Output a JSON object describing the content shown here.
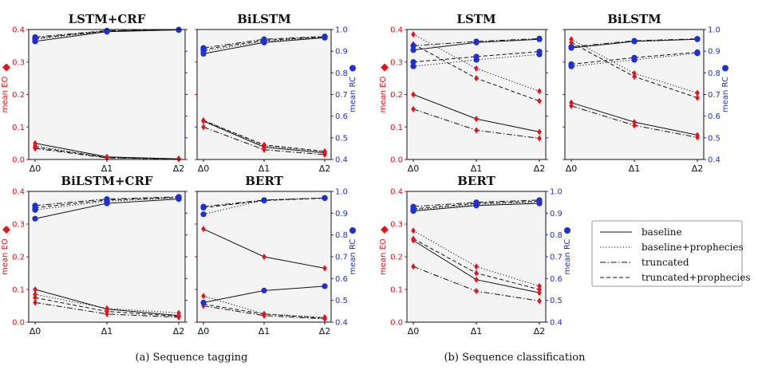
{
  "colors": {
    "eo": "#e8101a",
    "rc": "#1f2fd6",
    "plot_bg": "#f4f4f4",
    "axis": "#111111"
  },
  "captions": {
    "a": "(a) Sequence tagging",
    "b": "(b) Sequence classification"
  },
  "chart_data": [
    {
      "type": "line",
      "group": "Sequence tagging",
      "title": "LSTM+CRF",
      "x": [
        "Δ0",
        "Δ1",
        "Δ2"
      ],
      "ylabel_left": "mean EO",
      "ylabel_right": "mean RC",
      "ylim_left": [
        0,
        0.4
      ],
      "ylim_right": [
        0.4,
        1.0
      ],
      "yticks_left": [
        "0.0",
        "0.1",
        "0.2",
        "0.3",
        "0.4"
      ],
      "yticks_right": [
        "0.4",
        "0.5",
        "0.6",
        "0.7",
        "0.8",
        "0.9",
        "1.0"
      ],
      "show_left_ticks": true,
      "show_right_ticks": false,
      "series": [
        {
          "name": "baseline",
          "metric": "EO",
          "values": [
            0.05,
            0.008,
            0.002
          ]
        },
        {
          "name": "baseline+prophecies",
          "metric": "EO",
          "values": [
            0.042,
            0.006,
            0.002
          ]
        },
        {
          "name": "truncated",
          "metric": "EO",
          "values": [
            0.034,
            0.005,
            0.001
          ]
        },
        {
          "name": "truncated+prophecies",
          "metric": "EO",
          "values": [
            0.038,
            0.006,
            0.002
          ]
        },
        {
          "name": "baseline",
          "metric": "RC",
          "values": [
            0.945,
            0.99,
            0.998
          ]
        },
        {
          "name": "baseline+prophecies",
          "metric": "RC",
          "values": [
            0.955,
            0.992,
            0.998
          ]
        },
        {
          "name": "truncated",
          "metric": "RC",
          "values": [
            0.965,
            0.995,
            0.999
          ]
        },
        {
          "name": "truncated+prophecies",
          "metric": "RC",
          "values": [
            0.96,
            0.993,
            0.999
          ]
        }
      ]
    },
    {
      "type": "line",
      "group": "Sequence tagging",
      "title": "BiLSTM",
      "x": [
        "Δ0",
        "Δ1",
        "Δ2"
      ],
      "ylabel_left": "mean EO",
      "ylabel_right": "mean RC",
      "ylim_left": [
        0,
        0.4
      ],
      "ylim_right": [
        0.4,
        1.0
      ],
      "yticks_left": [
        "0.0",
        "0.1",
        "0.2",
        "0.3",
        "0.4"
      ],
      "yticks_right": [
        "0.4",
        "0.5",
        "0.6",
        "0.7",
        "0.8",
        "0.9",
        "1.0"
      ],
      "show_left_ticks": false,
      "show_right_ticks": true,
      "series": [
        {
          "name": "baseline",
          "metric": "EO",
          "values": [
            0.118,
            0.038,
            0.02
          ]
        },
        {
          "name": "baseline+prophecies",
          "metric": "EO",
          "values": [
            0.12,
            0.042,
            0.024
          ]
        },
        {
          "name": "truncated",
          "metric": "EO",
          "values": [
            0.1,
            0.03,
            0.015
          ]
        },
        {
          "name": "truncated+prophecies",
          "metric": "EO",
          "values": [
            0.12,
            0.045,
            0.025
          ]
        },
        {
          "name": "baseline",
          "metric": "RC",
          "values": [
            0.888,
            0.94,
            0.962
          ]
        },
        {
          "name": "baseline+prophecies",
          "metric": "RC",
          "values": [
            0.9,
            0.945,
            0.965
          ]
        },
        {
          "name": "truncated",
          "metric": "RC",
          "values": [
            0.915,
            0.955,
            0.968
          ]
        },
        {
          "name": "truncated+prophecies",
          "metric": "RC",
          "values": [
            0.908,
            0.95,
            0.966
          ]
        }
      ]
    },
    {
      "type": "line",
      "group": "Sequence tagging",
      "title": "BiLSTM+CRF",
      "x": [
        "Δ0",
        "Δ1",
        "Δ2"
      ],
      "ylabel_left": "mean EO",
      "ylabel_right": "mean RC",
      "ylim_left": [
        0,
        0.4
      ],
      "ylim_right": [
        0.4,
        1.0
      ],
      "yticks_left": [
        "0.0",
        "0.1",
        "0.2",
        "0.3",
        "0.4"
      ],
      "yticks_right": [
        "0.4",
        "0.5",
        "0.6",
        "0.7",
        "0.8",
        "0.9",
        "1.0"
      ],
      "show_left_ticks": true,
      "show_right_ticks": false,
      "series": [
        {
          "name": "baseline",
          "metric": "EO",
          "values": [
            0.1,
            0.04,
            0.02
          ]
        },
        {
          "name": "baseline+prophecies",
          "metric": "EO",
          "values": [
            0.085,
            0.042,
            0.028
          ]
        },
        {
          "name": "truncated",
          "metric": "EO",
          "values": [
            0.06,
            0.025,
            0.015
          ]
        },
        {
          "name": "truncated+prophecies",
          "metric": "EO",
          "values": [
            0.075,
            0.033,
            0.018
          ]
        },
        {
          "name": "baseline",
          "metric": "RC",
          "values": [
            0.875,
            0.945,
            0.965
          ]
        },
        {
          "name": "baseline+prophecies",
          "metric": "RC",
          "values": [
            0.915,
            0.955,
            0.97
          ]
        },
        {
          "name": "truncated",
          "metric": "RC",
          "values": [
            0.935,
            0.965,
            0.975
          ]
        },
        {
          "name": "truncated+prophecies",
          "metric": "RC",
          "values": [
            0.925,
            0.96,
            0.972
          ]
        }
      ]
    },
    {
      "type": "line",
      "group": "Sequence tagging",
      "title": "BERT",
      "x": [
        "Δ0",
        "Δ1",
        "Δ2"
      ],
      "ylabel_left": "mean EO",
      "ylabel_right": "mean RC",
      "ylim_left": [
        0,
        0.4
      ],
      "ylim_right": [
        0.4,
        1.0
      ],
      "yticks_left": [
        "0.0",
        "0.1",
        "0.2",
        "0.3",
        "0.4"
      ],
      "yticks_right": [
        "0.4",
        "0.5",
        "0.6",
        "0.7",
        "0.8",
        "0.9",
        "1.0"
      ],
      "show_left_ticks": false,
      "show_right_ticks": true,
      "series": [
        {
          "name": "baseline",
          "metric": "EO",
          "values": [
            0.285,
            0.2,
            0.165
          ]
        },
        {
          "name": "baseline+prophecies",
          "metric": "EO",
          "values": [
            0.08,
            0.025,
            0.015
          ]
        },
        {
          "name": "truncated",
          "metric": "EO",
          "values": [
            0.05,
            0.02,
            0.01
          ]
        },
        {
          "name": "truncated+prophecies",
          "metric": "EO",
          "values": [
            0.055,
            0.025,
            0.012
          ]
        },
        {
          "name": "baseline",
          "metric": "RC",
          "values": [
            0.49,
            0.545,
            0.565
          ]
        },
        {
          "name": "baseline+prophecies",
          "metric": "RC",
          "values": [
            0.895,
            0.96,
            0.97
          ]
        },
        {
          "name": "truncated",
          "metric": "RC",
          "values": [
            0.93,
            0.96,
            0.97
          ]
        },
        {
          "name": "truncated+prophecies",
          "metric": "RC",
          "values": [
            0.925,
            0.958,
            0.969
          ]
        }
      ]
    },
    {
      "type": "line",
      "group": "Sequence classification",
      "title": "LSTM",
      "x": [
        "Δ0",
        "Δ1",
        "Δ2"
      ],
      "ylabel_left": "mean EO",
      "ylabel_right": "mean RC",
      "ylim_left": [
        0,
        0.4
      ],
      "ylim_right": [
        0.4,
        1.0
      ],
      "yticks_left": [
        "0.0",
        "0.1",
        "0.2",
        "0.3",
        "0.4"
      ],
      "yticks_right": [
        "0.4",
        "0.5",
        "0.6",
        "0.7",
        "0.8",
        "0.9",
        "1.0"
      ],
      "show_left_ticks": true,
      "show_right_ticks": false,
      "series": [
        {
          "name": "baseline",
          "metric": "EO",
          "values": [
            0.2,
            0.125,
            0.085
          ]
        },
        {
          "name": "baseline+prophecies",
          "metric": "EO",
          "values": [
            0.385,
            0.28,
            0.21
          ]
        },
        {
          "name": "truncated",
          "metric": "EO",
          "values": [
            0.155,
            0.09,
            0.065
          ]
        },
        {
          "name": "truncated+prophecies",
          "metric": "EO",
          "values": [
            0.355,
            0.25,
            0.18
          ]
        },
        {
          "name": "baseline",
          "metric": "RC",
          "values": [
            0.905,
            0.94,
            0.955
          ]
        },
        {
          "name": "baseline+prophecies",
          "metric": "RC",
          "values": [
            0.83,
            0.86,
            0.885
          ]
        },
        {
          "name": "truncated",
          "metric": "RC",
          "values": [
            0.925,
            0.945,
            0.958
          ]
        },
        {
          "name": "truncated+prophecies",
          "metric": "RC",
          "values": [
            0.85,
            0.875,
            0.898
          ]
        }
      ]
    },
    {
      "type": "line",
      "group": "Sequence classification",
      "title": "BiLSTM",
      "x": [
        "Δ0",
        "Δ1",
        "Δ2"
      ],
      "ylabel_left": "mean EO",
      "ylabel_right": "mean RC",
      "ylim_left": [
        0,
        0.4
      ],
      "ylim_right": [
        0.4,
        1.0
      ],
      "yticks_left": [
        "0.0",
        "0.1",
        "0.2",
        "0.3",
        "0.4"
      ],
      "yticks_right": [
        "0.4",
        "0.5",
        "0.6",
        "0.7",
        "0.8",
        "0.9",
        "1.0"
      ],
      "show_left_ticks": false,
      "show_right_ticks": true,
      "series": [
        {
          "name": "baseline",
          "metric": "EO",
          "values": [
            0.175,
            0.115,
            0.075
          ]
        },
        {
          "name": "baseline+prophecies",
          "metric": "EO",
          "values": [
            0.37,
            0.265,
            0.205
          ]
        },
        {
          "name": "truncated",
          "metric": "EO",
          "values": [
            0.165,
            0.105,
            0.068
          ]
        },
        {
          "name": "truncated+prophecies",
          "metric": "EO",
          "values": [
            0.36,
            0.255,
            0.19
          ]
        },
        {
          "name": "baseline",
          "metric": "RC",
          "values": [
            0.915,
            0.945,
            0.955
          ]
        },
        {
          "name": "baseline+prophecies",
          "metric": "RC",
          "values": [
            0.83,
            0.86,
            0.89
          ]
        },
        {
          "name": "truncated",
          "metric": "RC",
          "values": [
            0.92,
            0.948,
            0.957
          ]
        },
        {
          "name": "truncated+prophecies",
          "metric": "RC",
          "values": [
            0.84,
            0.87,
            0.895
          ]
        }
      ]
    },
    {
      "type": "line",
      "group": "Sequence classification",
      "title": "BERT",
      "x": [
        "Δ0",
        "Δ1",
        "Δ2"
      ],
      "ylabel_left": "mean EO",
      "ylabel_right": "mean RC",
      "ylim_left": [
        0,
        0.4
      ],
      "ylim_right": [
        0.4,
        1.0
      ],
      "yticks_left": [
        "0.0",
        "0.1",
        "0.2",
        "0.3",
        "0.4"
      ],
      "yticks_right": [
        "0.4",
        "0.5",
        "0.6",
        "0.7",
        "0.8",
        "0.9",
        "1.0"
      ],
      "show_left_ticks": true,
      "show_right_ticks": true,
      "series": [
        {
          "name": "baseline",
          "metric": "EO",
          "values": [
            0.25,
            0.13,
            0.09
          ]
        },
        {
          "name": "baseline+prophecies",
          "metric": "EO",
          "values": [
            0.28,
            0.17,
            0.11
          ]
        },
        {
          "name": "truncated",
          "metric": "EO",
          "values": [
            0.17,
            0.095,
            0.065
          ]
        },
        {
          "name": "truncated+prophecies",
          "metric": "EO",
          "values": [
            0.255,
            0.15,
            0.1
          ]
        },
        {
          "name": "baseline",
          "metric": "RC",
          "values": [
            0.91,
            0.935,
            0.945
          ]
        },
        {
          "name": "baseline+prophecies",
          "metric": "RC",
          "values": [
            0.915,
            0.94,
            0.95
          ]
        },
        {
          "name": "truncated",
          "metric": "RC",
          "values": [
            0.93,
            0.95,
            0.96
          ]
        },
        {
          "name": "truncated+prophecies",
          "metric": "RC",
          "values": [
            0.92,
            0.945,
            0.955
          ]
        }
      ]
    }
  ],
  "legend": [
    {
      "label": "baseline",
      "style": "solid"
    },
    {
      "label": "baseline+prophecies",
      "style": "dotted"
    },
    {
      "label": "truncated",
      "style": "dashdot"
    },
    {
      "label": "truncated+prophecies",
      "style": "dashed"
    }
  ]
}
